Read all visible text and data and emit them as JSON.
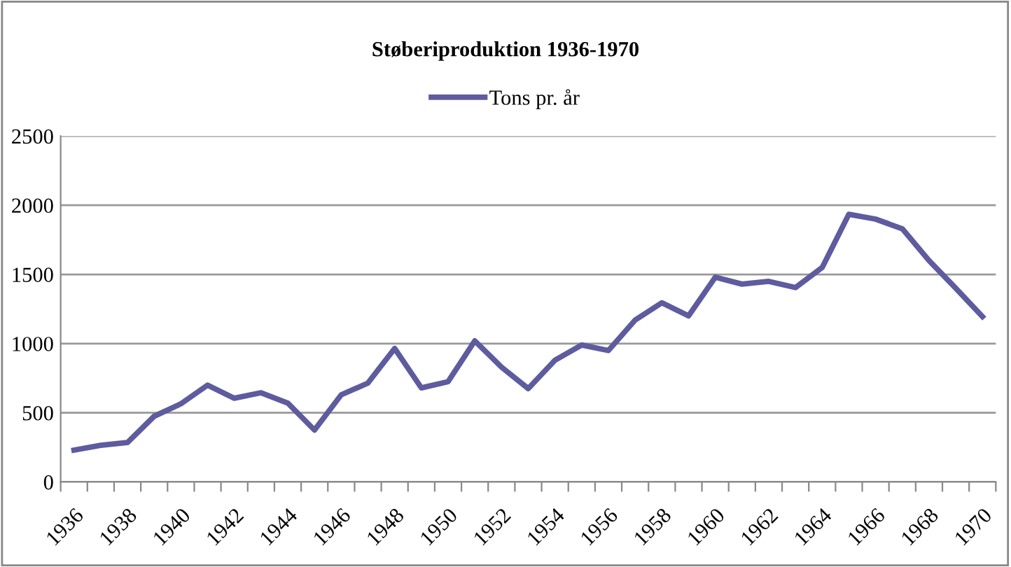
{
  "chart_data": {
    "type": "line",
    "title": "Støberiproduktion 1936-1970",
    "categories": [
      "1936",
      null,
      "1938",
      null,
      "1940",
      null,
      "1942",
      null,
      "1944",
      null,
      "1946",
      null,
      "1948",
      null,
      "1950",
      null,
      "1952",
      null,
      "1954",
      null,
      "1956",
      null,
      "1958",
      null,
      "1960",
      null,
      "1962",
      null,
      "1964",
      null,
      "1966",
      null,
      "1968",
      null,
      "1970"
    ],
    "series": [
      {
        "name": "Tons pr. år",
        "color": "#5e5b9e",
        "values": [
          230,
          265,
          285,
          475,
          565,
          700,
          605,
          645,
          570,
          375,
          630,
          715,
          965,
          680,
          725,
          1020,
          830,
          675,
          880,
          990,
          950,
          1170,
          1295,
          1200,
          1480,
          1430,
          1450,
          1405,
          1550,
          1935,
          1900,
          1830,
          1600,
          1400,
          1195
        ]
      }
    ],
    "ylim": [
      0,
      2500
    ],
    "yticks": [
      0,
      500,
      1000,
      1500,
      2000,
      2500
    ],
    "grid": "y",
    "legend": "top",
    "marker": "none",
    "line_style": "solid"
  }
}
